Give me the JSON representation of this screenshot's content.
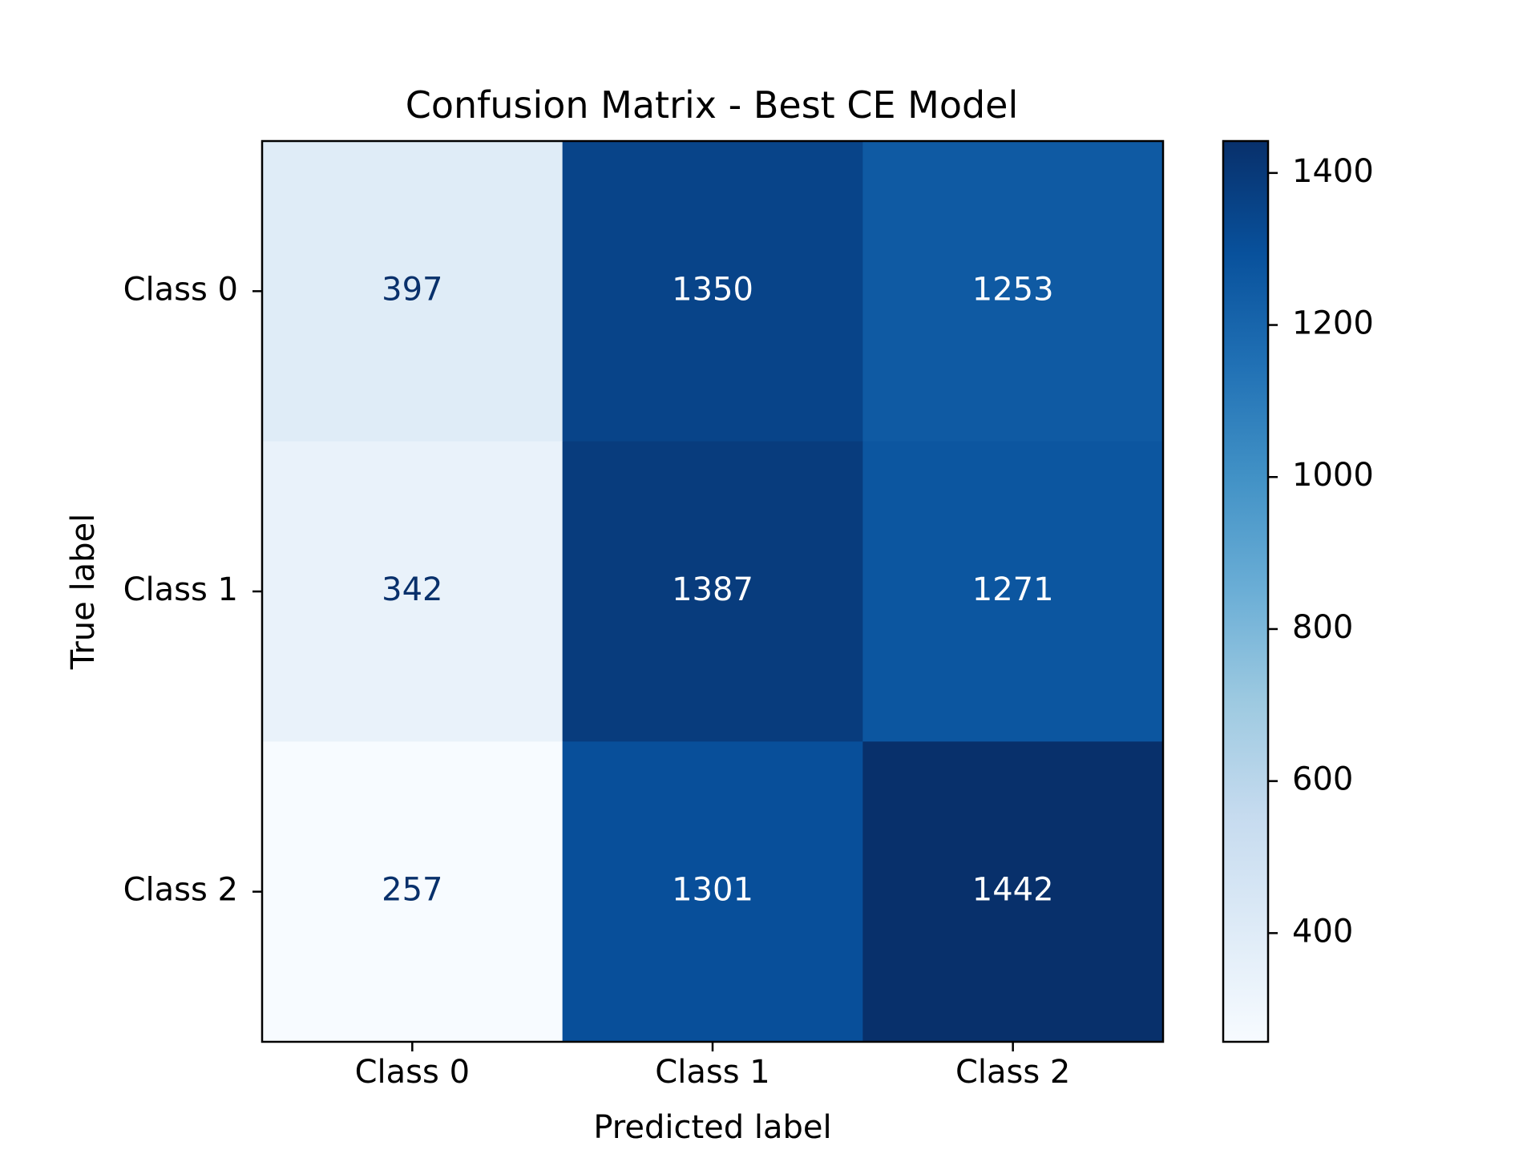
{
  "chart_data": {
    "type": "heatmap",
    "title": "Confusion Matrix - Best CE Model",
    "xlabel": "Predicted label",
    "ylabel": "True label",
    "x_categories": [
      "Class 0",
      "Class 1",
      "Class 2"
    ],
    "y_categories": [
      "Class 0",
      "Class 1",
      "Class 2"
    ],
    "matrix": [
      [
        397,
        1350,
        1253
      ],
      [
        342,
        1387,
        1271
      ],
      [
        257,
        1301,
        1442
      ]
    ],
    "colormap": "Blues",
    "color_range": [
      257,
      1442
    ],
    "colorbar_ticks": [
      400,
      600,
      800,
      1000,
      1200,
      1400
    ],
    "colorbar_tick_labels": [
      "400",
      "600",
      "800",
      "1000",
      "1200",
      "1400"
    ],
    "cell_text_light": "#ffffff",
    "cell_text_dark": "#08306b"
  }
}
